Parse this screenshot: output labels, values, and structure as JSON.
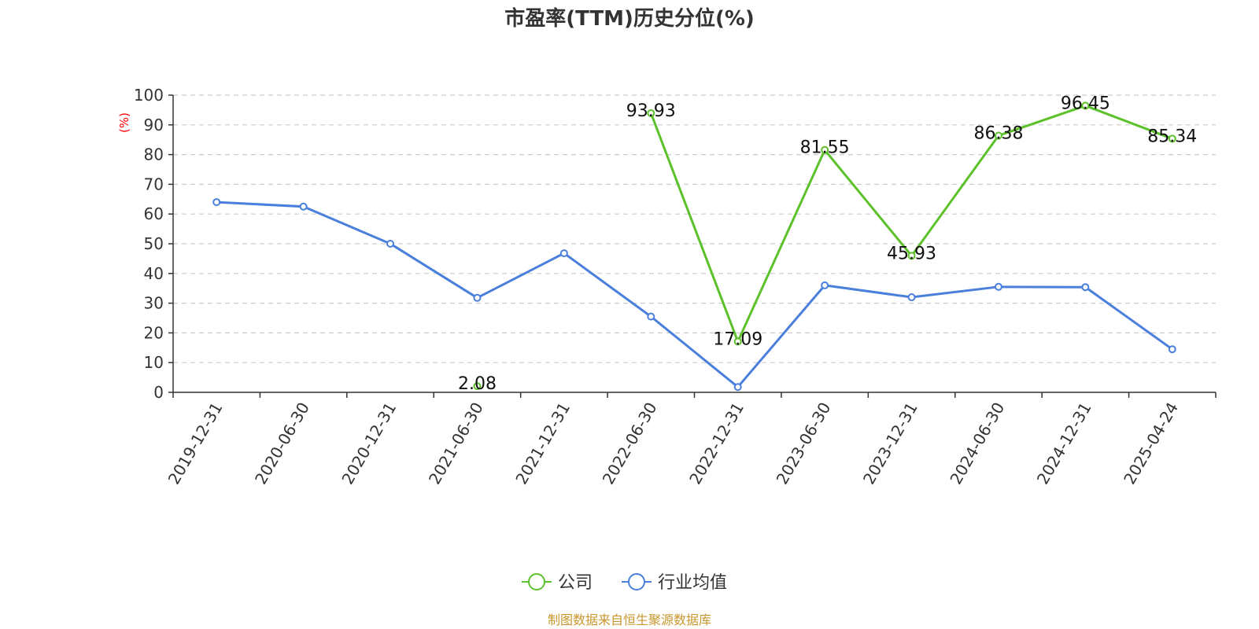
{
  "chart_data": {
    "type": "line",
    "title": "市盈率(TTM)历史分位(%)",
    "ylabel": "(%)",
    "ylim": [
      0,
      100
    ],
    "yticks": [
      0,
      10,
      20,
      30,
      40,
      50,
      60,
      70,
      80,
      90,
      100
    ],
    "grid": true,
    "legend_position": "bottom-center",
    "categories": [
      "2019-12-31",
      "2020-06-30",
      "2020-12-31",
      "2021-06-30",
      "2021-12-31",
      "2022-06-30",
      "2022-12-31",
      "2023-06-30",
      "2023-12-31",
      "2024-06-30",
      "2024-12-31",
      "2025-04-24"
    ],
    "series": [
      {
        "name": "公司",
        "color": "#5cc12a",
        "values": [
          null,
          null,
          null,
          2.08,
          null,
          93.93,
          17.09,
          81.55,
          45.93,
          86.38,
          96.45,
          85.34
        ],
        "labels": [
          "",
          "",
          "",
          "2.08",
          "",
          "93.93",
          "17.09",
          "81.55",
          "45.93",
          "86.38",
          "96.45",
          "85.34"
        ]
      },
      {
        "name": "行业均值",
        "color": "#4a7fdc",
        "values": [
          64.0,
          62.5,
          50.0,
          31.8,
          46.8,
          25.5,
          1.8,
          36.0,
          32.0,
          35.5,
          35.4,
          14.5
        ]
      }
    ],
    "source": "制图数据来自恒生聚源数据库",
    "source_color": "#c8962e",
    "unit_color": "#ff0000"
  }
}
